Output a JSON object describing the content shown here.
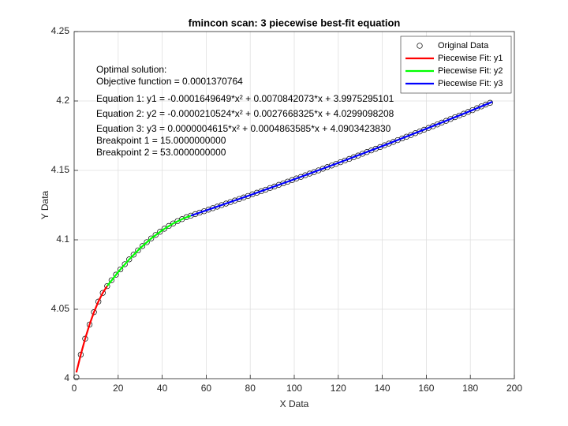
{
  "chart_data": {
    "type": "scatter-fit",
    "title": "fmincon scan: 3 piecewise best-fit equation",
    "x_label": "X Data",
    "y_label": "Y Data",
    "xlim": [
      0,
      200
    ],
    "ylim": [
      4,
      4.25
    ],
    "xticks": [
      0,
      20,
      40,
      60,
      80,
      100,
      120,
      140,
      160,
      180,
      200
    ],
    "yticks": [
      4,
      4.05,
      4.1,
      4.15,
      4.2,
      4.25
    ],
    "grid": true,
    "legend": "top-right",
    "annotations": [
      "Optimal solution:",
      "Objective function = 0.0001370764",
      "Equation 1: y1 = -0.0001649649*x² + 0.0070842073*x + 3.9975295101",
      "Equation 2: y2 = -0.0000210524*x² + 0.0027668325*x + 4.0299098208",
      "Equation 3: y3 = 0.0000004615*x² + 0.0004863585*x + 4.0903423830",
      "Breakpoint 1 = 15.0000000000",
      "Breakpoint 2 = 53.0000000000"
    ],
    "series": [
      {
        "name": "Original Data",
        "color": "#000000",
        "kind": "marker",
        "x": [
          1,
          3,
          5,
          7,
          9,
          11,
          13,
          15,
          17,
          19,
          21,
          23,
          25,
          27,
          29,
          31,
          33,
          35,
          37,
          39,
          41,
          43,
          45,
          47,
          49,
          51,
          53,
          55,
          57,
          59,
          61,
          63,
          65,
          67,
          69,
          71,
          73,
          75,
          77,
          79,
          81,
          83,
          85,
          87,
          89,
          91,
          93,
          95,
          97,
          99,
          101,
          103,
          105,
          107,
          109,
          111,
          113,
          115,
          117,
          119,
          121,
          123,
          125,
          127,
          129,
          131,
          133,
          135,
          137,
          139,
          141,
          143,
          145,
          147,
          149,
          151,
          153,
          155,
          157,
          159,
          161,
          163,
          165,
          167,
          169,
          171,
          173,
          175,
          177,
          179,
          181,
          183,
          185,
          187,
          189
        ],
        "values": [
          4.001,
          4.0173,
          4.0288,
          4.039,
          4.0479,
          4.0555,
          4.0618,
          4.0667,
          4.0709,
          4.0749,
          4.0787,
          4.0824,
          4.0859,
          4.0893,
          4.0924,
          4.0955,
          4.0983,
          4.101,
          4.1035,
          4.1058,
          4.108,
          4.11,
          4.1118,
          4.1135,
          4.1149,
          4.1163,
          4.1174,
          4.1185,
          4.1196,
          4.1206,
          4.1217,
          4.1228,
          4.1239,
          4.125,
          4.1261,
          4.1272,
          4.1283,
          4.1294,
          4.1305,
          4.1316,
          4.1328,
          4.1339,
          4.135,
          4.1361,
          4.1373,
          4.1384,
          4.1396,
          4.1407,
          4.1419,
          4.143,
          4.1442,
          4.1453,
          4.1465,
          4.1477,
          4.1488,
          4.15,
          4.1512,
          4.1524,
          4.1535,
          4.1547,
          4.1559,
          4.1571,
          4.1583,
          4.1595,
          4.1607,
          4.162,
          4.1632,
          4.1644,
          4.1656,
          4.1668,
          4.1681,
          4.1693,
          4.1705,
          4.1718,
          4.173,
          4.1743,
          4.1755,
          4.1768,
          4.178,
          4.1793,
          4.1806,
          4.1818,
          4.1831,
          4.1844,
          4.1857,
          4.187,
          4.1883,
          4.1895,
          4.1908,
          4.1921,
          4.1934,
          4.1948,
          4.1961,
          4.1974,
          4.1987
        ]
      },
      {
        "name": "Piecewise Fit: y1",
        "color": "#ff0000",
        "kind": "line",
        "x": [
          1,
          3,
          5,
          7,
          9,
          11,
          13,
          15
        ],
        "values": [
          4.0045,
          4.0173,
          4.0288,
          4.039,
          4.0479,
          4.0555,
          4.0618,
          4.0667
        ]
      },
      {
        "name": "Piecewise Fit: y2",
        "color": "#00ff00",
        "kind": "line",
        "x": [
          15,
          20,
          25,
          30,
          35,
          40,
          45,
          50,
          53
        ],
        "values": [
          4.0667,
          4.0768,
          4.0859,
          4.094,
          4.101,
          4.1069,
          4.1118,
          4.1156,
          4.1174
        ]
      },
      {
        "name": "Piecewise Fit: y3",
        "color": "#0000ff",
        "kind": "line",
        "x": [
          53,
          60,
          80,
          100,
          120,
          140,
          160,
          180,
          190
        ],
        "values": [
          4.1174,
          4.1212,
          4.1322,
          4.1436,
          4.1554,
          4.1675,
          4.18,
          4.1928,
          4.1994
        ]
      }
    ]
  }
}
